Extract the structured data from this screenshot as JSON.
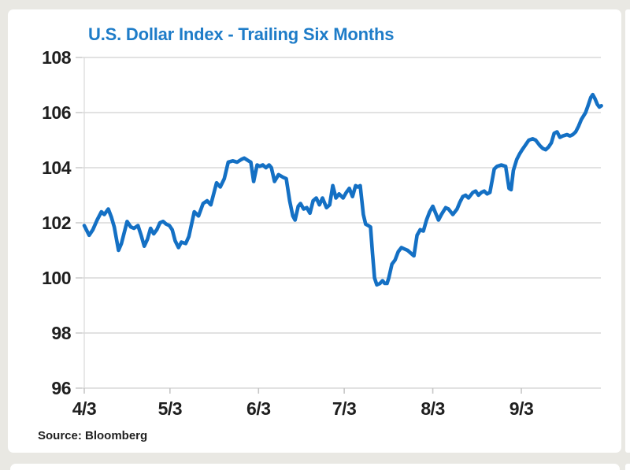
{
  "page": {
    "background_color": "#e9e8e3",
    "card_color": "#ffffff"
  },
  "chart_data": {
    "type": "line",
    "title": "U.S. Dollar Index - Trailing Six Months",
    "source": "Source: Bloomberg",
    "series_name": "U.S. Dollar Index",
    "title_color": "#1e7cc8",
    "line_color": "#1470c4",
    "grid_color": "#d9d9d9",
    "tick_color": "#c6c6c6",
    "label_color": "#1f1f1f",
    "ylim": [
      96,
      108
    ],
    "yticks": [
      96,
      98,
      100,
      102,
      104,
      106,
      108
    ],
    "x_axis": {
      "unit": "days since first tick date",
      "ticks": [
        {
          "day": 0,
          "label": "4/3"
        },
        {
          "day": 30,
          "label": "5/3"
        },
        {
          "day": 61,
          "label": "6/3"
        },
        {
          "day": 91,
          "label": "7/3"
        },
        {
          "day": 122,
          "label": "8/3"
        },
        {
          "day": 153,
          "label": "9/3"
        }
      ],
      "end_day": 181
    },
    "grid": true,
    "legend": "none",
    "points": [
      [
        0,
        101.9
      ],
      [
        1.7,
        101.55
      ],
      [
        3,
        101.75
      ],
      [
        4.5,
        102.1
      ],
      [
        6,
        102.4
      ],
      [
        7,
        102.3
      ],
      [
        8.4,
        102.5
      ],
      [
        9.5,
        102.2
      ],
      [
        10.5,
        101.85
      ],
      [
        12,
        101.0
      ],
      [
        13,
        101.25
      ],
      [
        15,
        102.05
      ],
      [
        16.3,
        101.85
      ],
      [
        17.4,
        101.8
      ],
      [
        18.8,
        101.9
      ],
      [
        19.9,
        101.55
      ],
      [
        21,
        101.15
      ],
      [
        22.1,
        101.4
      ],
      [
        23.2,
        101.8
      ],
      [
        24.3,
        101.6
      ],
      [
        25.4,
        101.75
      ],
      [
        26.5,
        102.0
      ],
      [
        27.6,
        102.05
      ],
      [
        28.7,
        101.95
      ],
      [
        29.8,
        101.9
      ],
      [
        30.8,
        101.75
      ],
      [
        31.8,
        101.35
      ],
      [
        33,
        101.1
      ],
      [
        34,
        101.3
      ],
      [
        35.5,
        101.25
      ],
      [
        36.6,
        101.5
      ],
      [
        38.5,
        102.4
      ],
      [
        40,
        102.25
      ],
      [
        41.6,
        102.7
      ],
      [
        43,
        102.8
      ],
      [
        44.3,
        102.65
      ],
      [
        46.3,
        103.45
      ],
      [
        47.6,
        103.3
      ],
      [
        49,
        103.6
      ],
      [
        50.4,
        104.2
      ],
      [
        52,
        104.25
      ],
      [
        53.5,
        104.2
      ],
      [
        55,
        104.3
      ],
      [
        56,
        104.35
      ],
      [
        57.5,
        104.25
      ],
      [
        58.3,
        104.2
      ],
      [
        59.3,
        103.5
      ],
      [
        60.5,
        104.1
      ],
      [
        61.4,
        104.05
      ],
      [
        62.5,
        104.1
      ],
      [
        63.6,
        104.0
      ],
      [
        64.7,
        104.1
      ],
      [
        65.5,
        104.0
      ],
      [
        66.6,
        103.5
      ],
      [
        68,
        103.75
      ],
      [
        69.6,
        103.65
      ],
      [
        70.7,
        103.6
      ],
      [
        71.9,
        102.8
      ],
      [
        73,
        102.25
      ],
      [
        73.8,
        102.1
      ],
      [
        74.9,
        102.6
      ],
      [
        75.7,
        102.7
      ],
      [
        76.8,
        102.5
      ],
      [
        77.9,
        102.55
      ],
      [
        79,
        102.35
      ],
      [
        80.1,
        102.8
      ],
      [
        81.2,
        102.9
      ],
      [
        82.3,
        102.65
      ],
      [
        83.4,
        102.9
      ],
      [
        84.8,
        102.55
      ],
      [
        85.9,
        102.65
      ],
      [
        87,
        103.35
      ],
      [
        88.1,
        102.9
      ],
      [
        89.2,
        103.05
      ],
      [
        90.6,
        102.9
      ],
      [
        91.7,
        103.1
      ],
      [
        92.8,
        103.25
      ],
      [
        93.9,
        102.95
      ],
      [
        95,
        103.35
      ],
      [
        95.8,
        103.3
      ],
      [
        96.6,
        103.35
      ],
      [
        97.7,
        102.3
      ],
      [
        98.5,
        101.95
      ],
      [
        99.4,
        101.9
      ],
      [
        100.2,
        101.85
      ],
      [
        100.9,
        100.9
      ],
      [
        101.6,
        100.0
      ],
      [
        102.4,
        99.75
      ],
      [
        103.5,
        99.8
      ],
      [
        104.4,
        99.9
      ],
      [
        105.2,
        99.8
      ],
      [
        106,
        99.8
      ],
      [
        106.6,
        100.0
      ],
      [
        107.7,
        100.5
      ],
      [
        108.8,
        100.65
      ],
      [
        109.9,
        100.95
      ],
      [
        111,
        101.1
      ],
      [
        112.1,
        101.05
      ],
      [
        113.2,
        101.0
      ],
      [
        114.3,
        100.9
      ],
      [
        115.4,
        100.8
      ],
      [
        116.5,
        101.55
      ],
      [
        117.6,
        101.75
      ],
      [
        118.7,
        101.7
      ],
      [
        119.8,
        102.1
      ],
      [
        120.9,
        102.4
      ],
      [
        122,
        102.6
      ],
      [
        123,
        102.35
      ],
      [
        124,
        102.1
      ],
      [
        125,
        102.3
      ],
      [
        126.5,
        102.55
      ],
      [
        127.5,
        102.5
      ],
      [
        129,
        102.3
      ],
      [
        130.5,
        102.5
      ],
      [
        131.5,
        102.75
      ],
      [
        132.5,
        102.95
      ],
      [
        133.5,
        103.0
      ],
      [
        134.5,
        102.9
      ],
      [
        136,
        103.1
      ],
      [
        137,
        103.15
      ],
      [
        138,
        103.0
      ],
      [
        139,
        103.1
      ],
      [
        140,
        103.15
      ],
      [
        141,
        103.05
      ],
      [
        142,
        103.1
      ],
      [
        143.5,
        103.95
      ],
      [
        144.5,
        104.05
      ],
      [
        146,
        104.1
      ],
      [
        147.5,
        104.05
      ],
      [
        148.7,
        103.25
      ],
      [
        149.4,
        103.2
      ],
      [
        150.2,
        103.9
      ],
      [
        151.4,
        104.3
      ],
      [
        152.4,
        104.5
      ],
      [
        153.3,
        104.65
      ],
      [
        154.3,
        104.8
      ],
      [
        155.6,
        105.0
      ],
      [
        157,
        105.05
      ],
      [
        158,
        105.0
      ],
      [
        159.5,
        104.8
      ],
      [
        160.5,
        104.7
      ],
      [
        161.5,
        104.65
      ],
      [
        162.5,
        104.75
      ],
      [
        163.5,
        104.9
      ],
      [
        164.5,
        105.25
      ],
      [
        165.5,
        105.3
      ],
      [
        166.5,
        105.1
      ],
      [
        167.5,
        105.15
      ],
      [
        169,
        105.2
      ],
      [
        170,
        105.15
      ],
      [
        171,
        105.2
      ],
      [
        172,
        105.3
      ],
      [
        173,
        105.5
      ],
      [
        174,
        105.75
      ],
      [
        175.5,
        106.0
      ],
      [
        176.5,
        106.3
      ],
      [
        177.3,
        106.55
      ],
      [
        178,
        106.65
      ],
      [
        178.8,
        106.5
      ],
      [
        179.6,
        106.3
      ],
      [
        180.3,
        106.2
      ],
      [
        181,
        106.25
      ]
    ]
  }
}
